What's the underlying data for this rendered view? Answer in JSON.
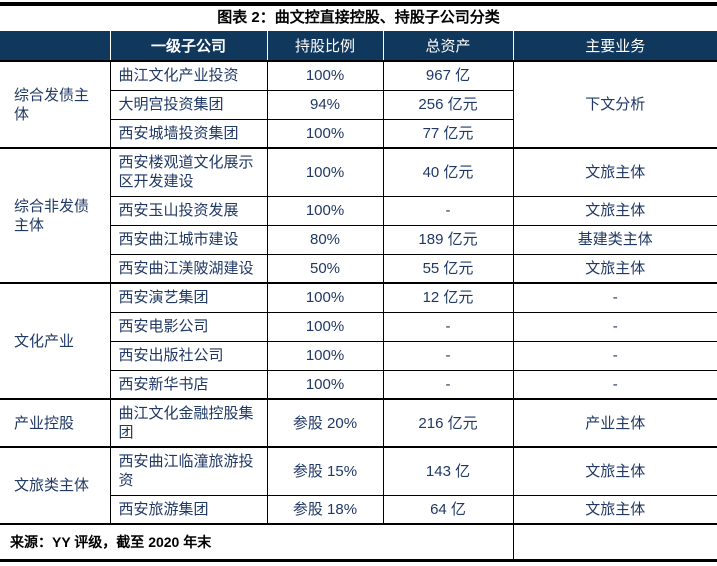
{
  "title": "图表 2：曲文控直接控股、持股子公司分类",
  "colors": {
    "header_bg": "#10375c",
    "header_text": "#ffffff",
    "body_text": "#1f3864",
    "title_text": "#000000",
    "border": "#000000"
  },
  "table": {
    "headers": [
      "",
      "一级子公司",
      "持股比例",
      "总资产",
      "主要业务"
    ],
    "groups": [
      {
        "label": "综合发债主体",
        "rows": [
          {
            "subsidiary": "曲江文化产业投资",
            "ratio": "100%",
            "assets": "967 亿",
            "business": "下文分析"
          },
          {
            "subsidiary": "大明宫投资集团",
            "ratio": "94%",
            "assets": "256 亿元"
          },
          {
            "subsidiary": "西安城墙投资集团",
            "ratio": "100%",
            "assets": "77 亿元"
          }
        ]
      },
      {
        "label": "综合非发债主体",
        "rows": [
          {
            "subsidiary": "西安楼观道文化展示区开发建设",
            "ratio": "100%",
            "assets": "40 亿元",
            "business": "文旅主体"
          },
          {
            "subsidiary": "西安玉山投资发展",
            "ratio": "100%",
            "assets": "-",
            "business": "文旅主体"
          },
          {
            "subsidiary": "西安曲江城市建设",
            "ratio": "80%",
            "assets": "189 亿元",
            "business": "基建类主体"
          },
          {
            "subsidiary": "西安曲江渼陂湖建设",
            "ratio": "50%",
            "assets": "55 亿元",
            "business": "文旅主体"
          }
        ]
      },
      {
        "label": "文化产业",
        "rows": [
          {
            "subsidiary": "西安演艺集团",
            "ratio": "100%",
            "assets": "12 亿元",
            "business": "-"
          },
          {
            "subsidiary": "西安电影公司",
            "ratio": "100%",
            "assets": "-",
            "business": "-"
          },
          {
            "subsidiary": "西安出版社公司",
            "ratio": "100%",
            "assets": "-",
            "business": "-"
          },
          {
            "subsidiary": "西安新华书店",
            "ratio": "100%",
            "assets": "-",
            "business": "-"
          }
        ]
      },
      {
        "label": "产业控股",
        "rows": [
          {
            "subsidiary": "曲江文化金融控股集团",
            "ratio": "参股 20%",
            "assets": "216 亿元",
            "business": "产业主体"
          }
        ]
      },
      {
        "label": "文旅类主体",
        "rows": [
          {
            "subsidiary": "西安曲江临潼旅游投资",
            "ratio": "参股 15%",
            "assets": "143 亿",
            "business": "文旅主体"
          },
          {
            "subsidiary": "西安旅游集团",
            "ratio": "参股 18%",
            "assets": "64 亿",
            "business": "文旅主体"
          }
        ]
      }
    ],
    "footer": "来源：YY 评级，截至 2020 年末"
  }
}
